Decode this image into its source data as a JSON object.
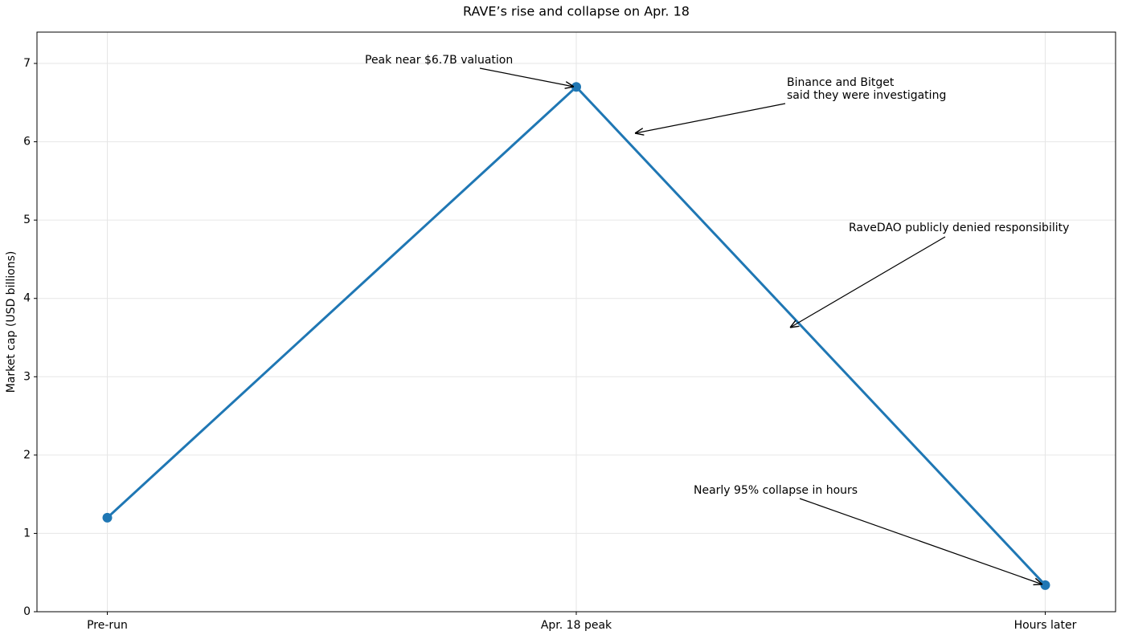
{
  "chart_data": {
    "type": "line",
    "title": "RAVE’s rise and collapse on Apr. 18",
    "y_label": "Market cap (USD billions)",
    "categories": [
      "Pre-run",
      "Apr. 18 peak",
      "Hours later"
    ],
    "values": [
      1.2,
      6.7,
      0.34
    ],
    "color": "#1f77b4",
    "ylim": [
      0,
      7.4
    ],
    "yticks": [
      0,
      1,
      2,
      3,
      4,
      5,
      6,
      7
    ],
    "grid": true,
    "annotations": [
      {
        "text": [
          "Peak near $6.7B valuation"
        ]
      },
      {
        "text": [
          "Binance and Bitget",
          "said they were investigating"
        ]
      },
      {
        "text": [
          "RaveDAO publicly denied responsibility"
        ]
      },
      {
        "text": [
          "Nearly 95% collapse in hours"
        ]
      }
    ]
  }
}
